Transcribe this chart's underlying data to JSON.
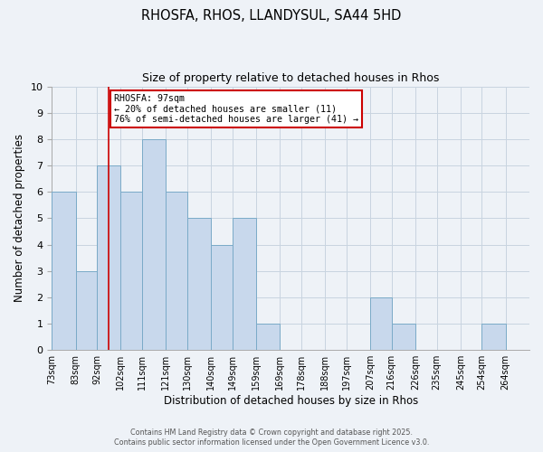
{
  "title": "RHOSFA, RHOS, LLANDYSUL, SA44 5HD",
  "subtitle": "Size of property relative to detached houses in Rhos",
  "xlabel": "Distribution of detached houses by size in Rhos",
  "ylabel": "Number of detached properties",
  "bin_labels": [
    "73sqm",
    "83sqm",
    "92sqm",
    "102sqm",
    "111sqm",
    "121sqm",
    "130sqm",
    "140sqm",
    "149sqm",
    "159sqm",
    "169sqm",
    "178sqm",
    "188sqm",
    "197sqm",
    "207sqm",
    "216sqm",
    "226sqm",
    "235sqm",
    "245sqm",
    "254sqm",
    "264sqm"
  ],
  "bin_edges": [
    73,
    83,
    92,
    102,
    111,
    121,
    130,
    140,
    149,
    159,
    169,
    178,
    188,
    197,
    207,
    216,
    226,
    235,
    245,
    254,
    264,
    274
  ],
  "counts": [
    6,
    3,
    7,
    6,
    8,
    6,
    5,
    4,
    5,
    1,
    0,
    0,
    0,
    0,
    2,
    1,
    0,
    0,
    0,
    1,
    0
  ],
  "bar_color": "#c8d8ec",
  "bar_edgecolor": "#7aaac8",
  "vline_x": 97,
  "vline_color": "#cc0000",
  "annotation_title": "RHOSFA: 97sqm",
  "annotation_line1": "← 20% of detached houses are smaller (11)",
  "annotation_line2": "76% of semi-detached houses are larger (41) →",
  "annotation_box_edgecolor": "#cc0000",
  "annotation_box_facecolor": "#ffffff",
  "ylim": [
    0,
    10
  ],
  "yticks": [
    0,
    1,
    2,
    3,
    4,
    5,
    6,
    7,
    8,
    9,
    10
  ],
  "grid_color": "#c8d4e0",
  "footer_line1": "Contains HM Land Registry data © Crown copyright and database right 2025.",
  "footer_line2": "Contains public sector information licensed under the Open Government Licence v3.0.",
  "background_color": "#eef2f7"
}
